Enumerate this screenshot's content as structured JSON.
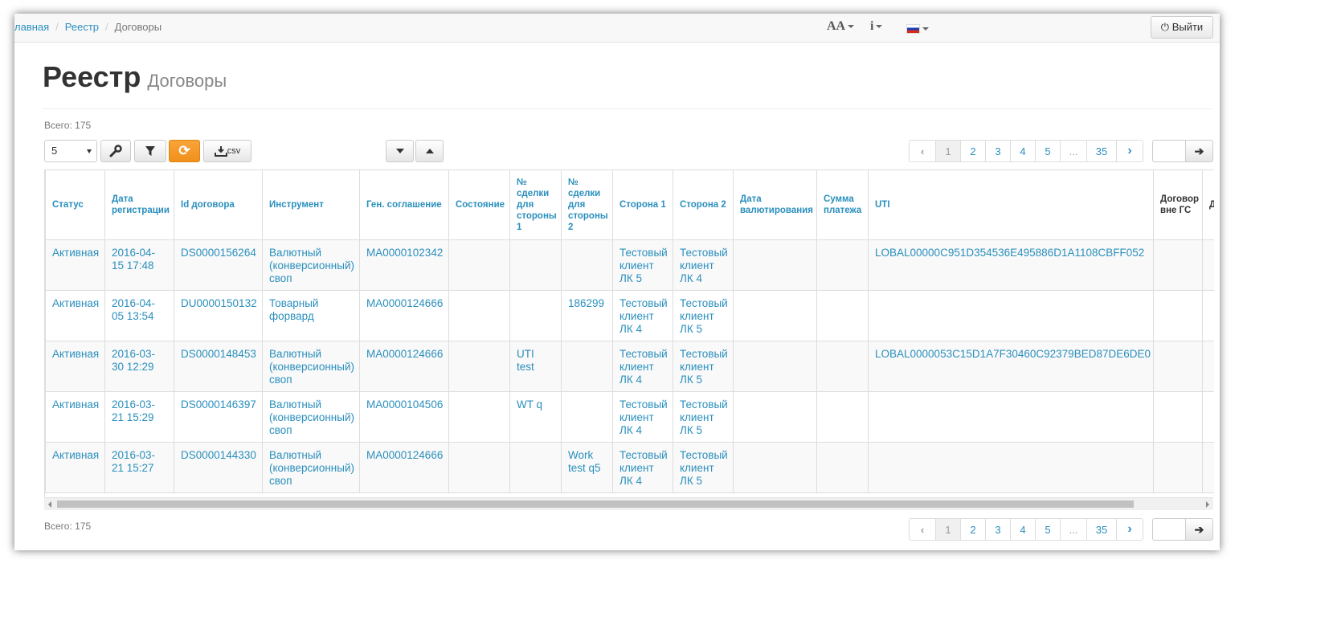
{
  "breadcrumb": {
    "home": "лавная",
    "registry": "Реестр",
    "current": "Договоры"
  },
  "topbar": {
    "font_icon": "AA",
    "info_icon": "i",
    "logout_label": "Выйти",
    "flag_icon": "ru-flag-icon"
  },
  "page": {
    "title": "Реестр",
    "subtitle": "Договоры"
  },
  "total_top": "Всего: 175",
  "total_bottom": "Всего: 175",
  "toolbar": {
    "page_size": "5",
    "csv_label": "csv"
  },
  "pager": {
    "pages": [
      "1",
      "2",
      "3",
      "4",
      "5",
      "...",
      "35"
    ],
    "active": "1"
  },
  "table": {
    "headers": [
      "Статус",
      "Дата регистрации",
      "Id договора",
      "Инструмент",
      "Ген. соглашение",
      "Состояние",
      "№ сделки для стороны 1",
      "№ сделки для стороны 2",
      "Сторона 1",
      "Сторона 2",
      "Дата валютирования",
      "Сумма платежа",
      "UTI",
      "Договор вне ГС",
      "Д Д"
    ],
    "rows": [
      [
        "Активная",
        "2016-04-15 17:48",
        "DS0000156264",
        "Валютный (конверсионный) своп",
        "MA0000102342",
        "",
        "",
        "",
        "Тестовый клиент ЛК 5",
        "Тестовый клиент ЛК 4",
        "",
        "",
        "LOBAL00000C951D354536E495886D1A1108CBFF052",
        "",
        ""
      ],
      [
        "Активная",
        "2016-04-05 13:54",
        "DU0000150132",
        "Товарный форвард",
        "MA0000124666",
        "",
        "",
        "186299",
        "Тестовый клиент ЛК 4",
        "Тестовый клиент ЛК 5",
        "",
        "",
        "",
        "",
        ""
      ],
      [
        "Активная",
        "2016-03-30 12:29",
        "DS0000148453",
        "Валютный (конверсионный) своп",
        "MA0000124666",
        "",
        "UTI test",
        "",
        "Тестовый клиент ЛК 4",
        "Тестовый клиент ЛК 5",
        "",
        "",
        "LOBAL0000053C15D1A7F30460C92379BED87DE6DE0",
        "",
        ""
      ],
      [
        "Активная",
        "2016-03-21 15:29",
        "DS0000146397",
        "Валютный (конверсионный) своп",
        "MA0000104506",
        "",
        "WT q",
        "",
        "Тестовый клиент ЛК 4",
        "Тестовый клиент ЛК 5",
        "",
        "",
        "",
        "",
        ""
      ],
      [
        "Активная",
        "2016-03-21 15:27",
        "DS0000144330",
        "Валютный (конверсионный) своп",
        "MA0000124666",
        "",
        "",
        "Work test q5",
        "Тестовый клиент ЛК 4",
        "Тестовый клиент ЛК 5",
        "",
        "",
        "",
        "",
        ""
      ]
    ]
  },
  "colors": {
    "link": "#2a8fbd",
    "accent_orange": "#f0901b"
  }
}
